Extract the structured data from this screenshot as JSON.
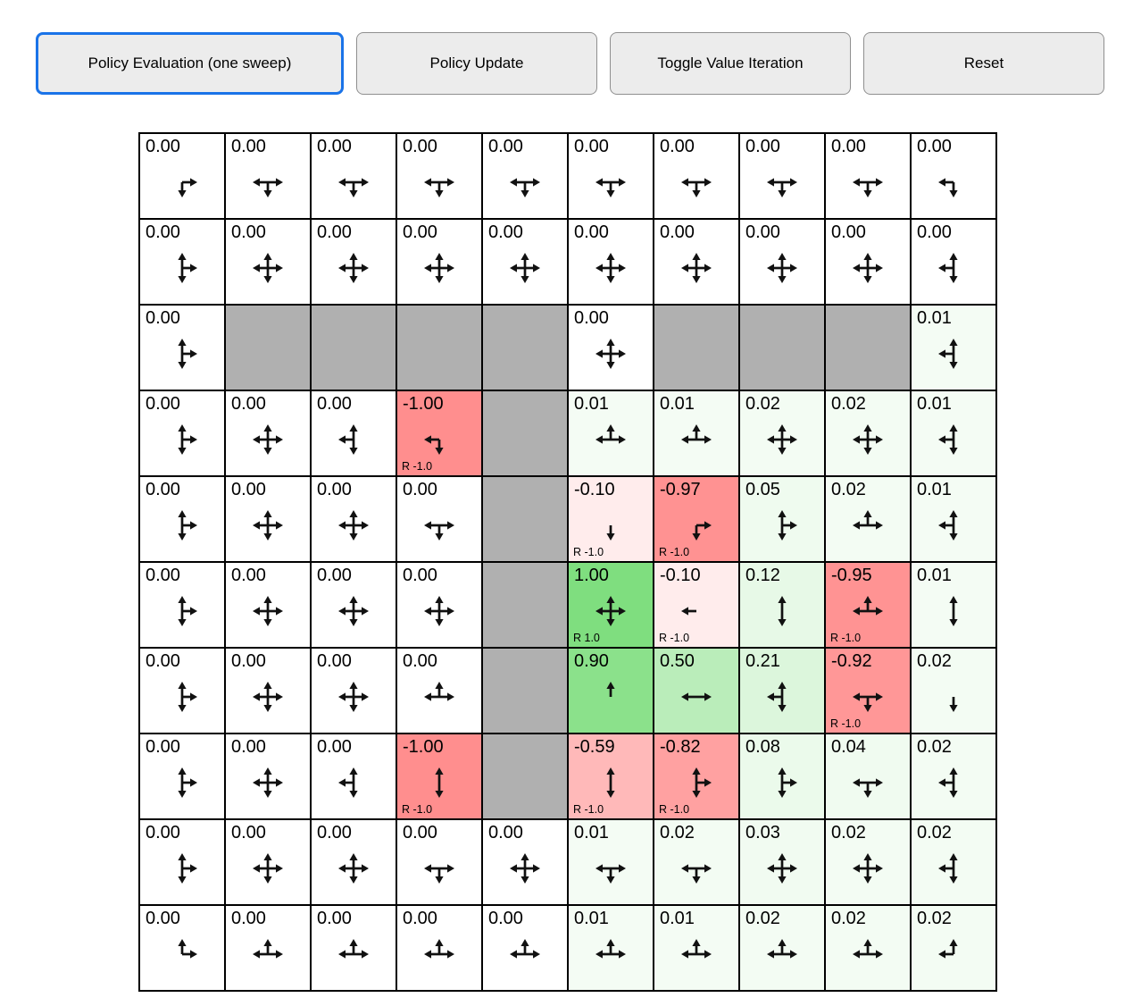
{
  "toolbar": {
    "buttons": [
      {
        "label": "Policy Evaluation (one sweep)",
        "active": true
      },
      {
        "label": "Policy Update",
        "active": false
      },
      {
        "label": "Toggle Value Iteration",
        "active": false
      },
      {
        "label": "Reset",
        "active": false
      }
    ]
  },
  "colors": {
    "active_border": "#1a73e8",
    "wall": "#b0b0b0",
    "positive": "#00be00",
    "negative": "#ff1e1e",
    "button_bg": "#ececec",
    "grid_line": "#000000",
    "arrow": "#111111"
  },
  "grid": {
    "rows": [
      [
        {
          "v": "0.00",
          "d": "dr"
        },
        {
          "v": "0.00",
          "d": "lrd"
        },
        {
          "v": "0.00",
          "d": "lrd"
        },
        {
          "v": "0.00",
          "d": "lrd"
        },
        {
          "v": "0.00",
          "d": "lrd"
        },
        {
          "v": "0.00",
          "d": "lrd"
        },
        {
          "v": "0.00",
          "d": "lrd"
        },
        {
          "v": "0.00",
          "d": "lrd"
        },
        {
          "v": "0.00",
          "d": "lrd"
        },
        {
          "v": "0.00",
          "d": "ld"
        }
      ],
      [
        {
          "v": "0.00",
          "d": "udr"
        },
        {
          "v": "0.00",
          "d": "udlr"
        },
        {
          "v": "0.00",
          "d": "udlr"
        },
        {
          "v": "0.00",
          "d": "udlr"
        },
        {
          "v": "0.00",
          "d": "udlr"
        },
        {
          "v": "0.00",
          "d": "udlr"
        },
        {
          "v": "0.00",
          "d": "udlr"
        },
        {
          "v": "0.00",
          "d": "udlr"
        },
        {
          "v": "0.00",
          "d": "udlr"
        },
        {
          "v": "0.00",
          "d": "udl"
        }
      ],
      [
        {
          "v": "0.00",
          "d": "udr"
        },
        {
          "w": true
        },
        {
          "w": true
        },
        {
          "w": true
        },
        {
          "w": true
        },
        {
          "v": "0.00",
          "d": "udlr"
        },
        {
          "w": true
        },
        {
          "w": true
        },
        {
          "w": true
        },
        {
          "v": "0.01",
          "d": "udl"
        }
      ],
      [
        {
          "v": "0.00",
          "d": "udr"
        },
        {
          "v": "0.00",
          "d": "udlr"
        },
        {
          "v": "0.00",
          "d": "udl"
        },
        {
          "v": "-1.00",
          "d": "ld",
          "r": "R -1.0"
        },
        {
          "w": true
        },
        {
          "v": "0.01",
          "d": "ulr"
        },
        {
          "v": "0.01",
          "d": "ulr"
        },
        {
          "v": "0.02",
          "d": "udlr"
        },
        {
          "v": "0.02",
          "d": "udlr"
        },
        {
          "v": "0.01",
          "d": "udl"
        }
      ],
      [
        {
          "v": "0.00",
          "d": "udr"
        },
        {
          "v": "0.00",
          "d": "udlr"
        },
        {
          "v": "0.00",
          "d": "udlr"
        },
        {
          "v": "0.00",
          "d": "lrd"
        },
        {
          "w": true
        },
        {
          "v": "-0.10",
          "d": "d",
          "r": "R -1.0"
        },
        {
          "v": "-0.97",
          "d": "rd",
          "r": "R -1.0"
        },
        {
          "v": "0.05",
          "d": "udr"
        },
        {
          "v": "0.02",
          "d": "ulr"
        },
        {
          "v": "0.01",
          "d": "udl"
        }
      ],
      [
        {
          "v": "0.00",
          "d": "udr"
        },
        {
          "v": "0.00",
          "d": "udlr"
        },
        {
          "v": "0.00",
          "d": "udlr"
        },
        {
          "v": "0.00",
          "d": "udlr"
        },
        {
          "w": true
        },
        {
          "v": "1.00",
          "d": "udlr",
          "r": "R 1.0"
        },
        {
          "v": "-0.10",
          "d": "l",
          "r": "R -1.0"
        },
        {
          "v": "0.12",
          "d": "ud"
        },
        {
          "v": "-0.95",
          "d": "ulr",
          "r": "R -1.0"
        },
        {
          "v": "0.01",
          "d": "ud"
        }
      ],
      [
        {
          "v": "0.00",
          "d": "udr"
        },
        {
          "v": "0.00",
          "d": "udlr"
        },
        {
          "v": "0.00",
          "d": "udlr"
        },
        {
          "v": "0.00",
          "d": "ulr"
        },
        {
          "w": true
        },
        {
          "v": "0.90",
          "d": "u"
        },
        {
          "v": "0.50",
          "d": "lr"
        },
        {
          "v": "0.21",
          "d": "udl"
        },
        {
          "v": "-0.92",
          "d": "lrd",
          "r": "R -1.0"
        },
        {
          "v": "0.02",
          "d": "d"
        }
      ],
      [
        {
          "v": "0.00",
          "d": "udr"
        },
        {
          "v": "0.00",
          "d": "udlr"
        },
        {
          "v": "0.00",
          "d": "udl"
        },
        {
          "v": "-1.00",
          "d": "ud",
          "r": "R -1.0"
        },
        {
          "w": true
        },
        {
          "v": "-0.59",
          "d": "ud",
          "r": "R -1.0"
        },
        {
          "v": "-0.82",
          "d": "udr",
          "r": "R -1.0"
        },
        {
          "v": "0.08",
          "d": "udr"
        },
        {
          "v": "0.04",
          "d": "lrd"
        },
        {
          "v": "0.02",
          "d": "udl"
        }
      ],
      [
        {
          "v": "0.00",
          "d": "udr"
        },
        {
          "v": "0.00",
          "d": "udlr"
        },
        {
          "v": "0.00",
          "d": "udlr"
        },
        {
          "v": "0.00",
          "d": "lrd"
        },
        {
          "v": "0.00",
          "d": "udlr"
        },
        {
          "v": "0.01",
          "d": "lrd"
        },
        {
          "v": "0.02",
          "d": "lrd"
        },
        {
          "v": "0.03",
          "d": "udlr"
        },
        {
          "v": "0.02",
          "d": "udlr"
        },
        {
          "v": "0.02",
          "d": "udl"
        }
      ],
      [
        {
          "v": "0.00",
          "d": "ur"
        },
        {
          "v": "0.00",
          "d": "ulr"
        },
        {
          "v": "0.00",
          "d": "ulr"
        },
        {
          "v": "0.00",
          "d": "ulr"
        },
        {
          "v": "0.00",
          "d": "ulr"
        },
        {
          "v": "0.01",
          "d": "ulr"
        },
        {
          "v": "0.01",
          "d": "ulr"
        },
        {
          "v": "0.02",
          "d": "ulr"
        },
        {
          "v": "0.02",
          "d": "ulr"
        },
        {
          "v": "0.02",
          "d": "ul"
        }
      ]
    ]
  }
}
